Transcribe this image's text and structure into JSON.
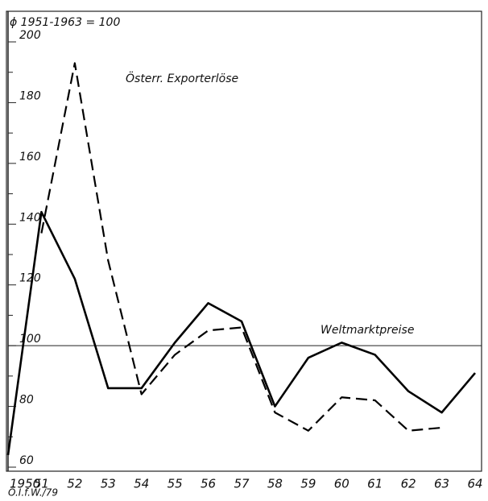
{
  "chart_data": {
    "type": "line",
    "title": "ϕ 1951-1963 = 100",
    "source": "Ö.I.f.W./79",
    "categories": [
      "1950",
      "51",
      "52",
      "53",
      "54",
      "55",
      "56",
      "57",
      "58",
      "59",
      "60",
      "61",
      "62",
      "63",
      "64"
    ],
    "series": [
      {
        "name": "Weltmarktpreise",
        "color": "#000000",
        "dash": false,
        "values": [
          64,
          144,
          122,
          86,
          86,
          101,
          114,
          108,
          80,
          96,
          101,
          97,
          85,
          78,
          91
        ]
      },
      {
        "name": "Österr. Exporterlöse",
        "color": "#000000",
        "dash": true,
        "values": [
          null,
          137,
          193,
          128,
          84,
          97,
          105,
          106,
          78,
          72,
          83,
          82,
          72,
          73,
          null
        ]
      }
    ],
    "reference_line": 100,
    "ylim": [
      60,
      200
    ],
    "yticks": [
      60,
      80,
      100,
      120,
      140,
      160,
      180,
      200
    ]
  }
}
